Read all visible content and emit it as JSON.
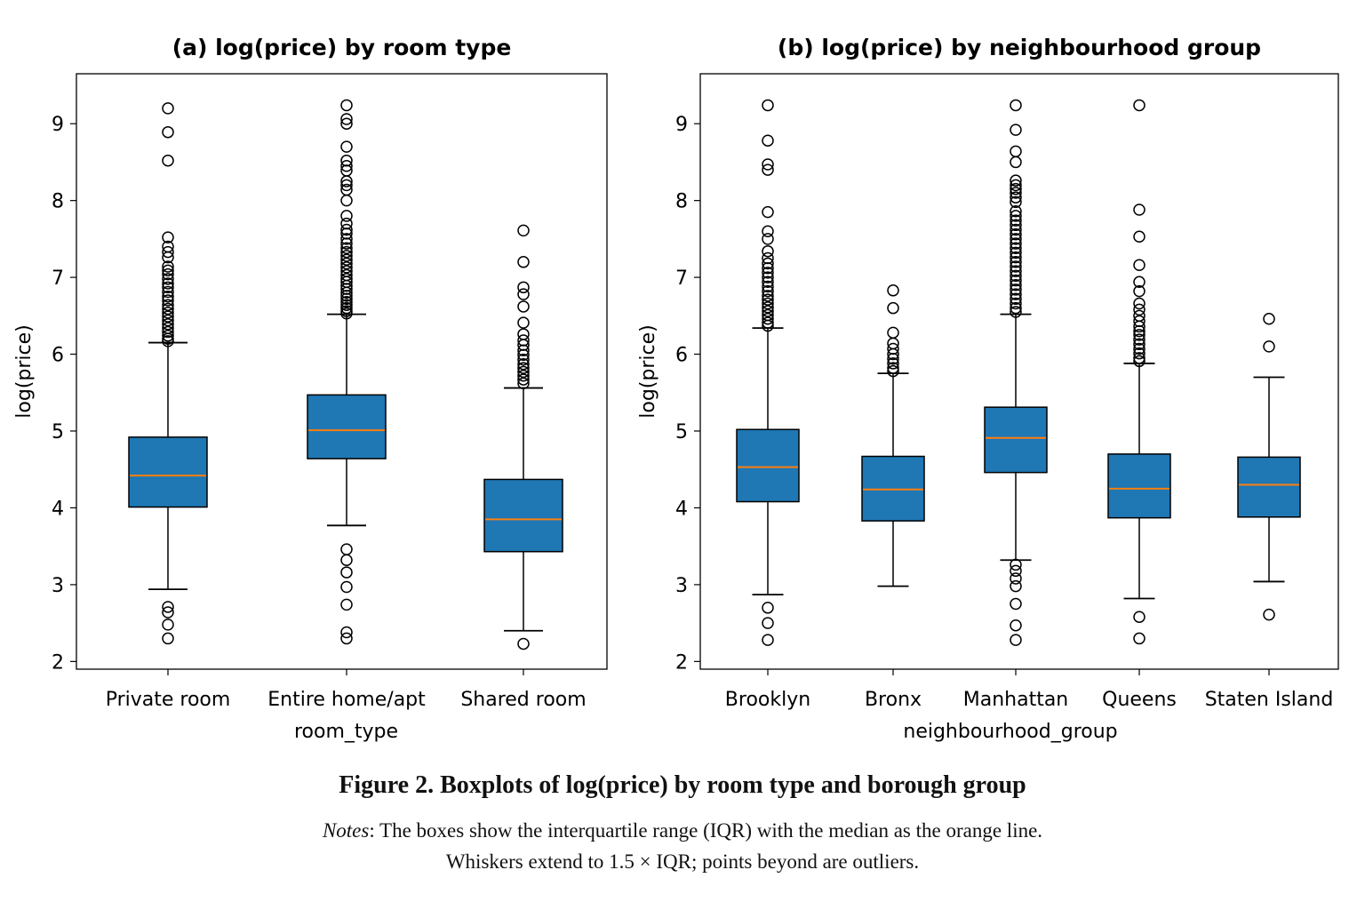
{
  "figure": {
    "caption_title": "Figure 2. Boxplots of log(price) by room type and borough group",
    "notes_label": "Notes",
    "notes_line1": ": The boxes show the interquartile range (IQR) with the median as the orange line.",
    "notes_line2": "Whiskers extend to 1.5 × IQR; points beyond are outliers."
  },
  "colors": {
    "box_fill": "#1f77b4",
    "median": "#ff7f0e",
    "outline": "#000000"
  },
  "chart_data": [
    {
      "type": "boxplot",
      "title": "(a) log(price) by room type",
      "xlabel": "room_type",
      "ylabel": "log(price)",
      "ylim": [
        1.9,
        9.65
      ],
      "yticks": [
        2,
        3,
        4,
        5,
        6,
        7,
        8,
        9
      ],
      "grid": false,
      "categories": [
        "Private room",
        "Entire home/apt",
        "Shared room"
      ],
      "boxes": [
        {
          "q1": 4.01,
          "median": 4.42,
          "q3": 4.92,
          "whisker_low": 2.94,
          "whisker_high": 6.15,
          "outliers": [
            9.2,
            8.89,
            8.52,
            7.52,
            7.4,
            7.33,
            7.26,
            7.14,
            7.09,
            7.04,
            6.98,
            6.92,
            6.87,
            6.81,
            6.75,
            6.7,
            6.64,
            6.59,
            6.54,
            6.49,
            6.44,
            6.39,
            6.34,
            6.29,
            6.24,
            6.2,
            6.17,
            2.71,
            2.64,
            2.48,
            2.3
          ]
        },
        {
          "q1": 4.64,
          "median": 5.01,
          "q3": 5.47,
          "whisker_low": 3.77,
          "whisker_high": 6.52,
          "outliers": [
            9.24,
            9.06,
            9.0,
            8.7,
            8.52,
            8.45,
            8.39,
            8.25,
            8.2,
            8.14,
            8.0,
            7.8,
            7.7,
            7.62,
            7.57,
            7.5,
            7.44,
            7.38,
            7.33,
            7.28,
            7.23,
            7.18,
            7.13,
            7.08,
            7.03,
            6.98,
            6.94,
            6.89,
            6.85,
            6.8,
            6.76,
            6.72,
            6.68,
            6.64,
            6.6,
            6.56,
            6.53,
            3.46,
            3.32,
            3.16,
            2.97,
            2.74,
            2.38,
            2.3
          ]
        },
        {
          "q1": 3.43,
          "median": 3.85,
          "q3": 4.37,
          "whisker_low": 2.4,
          "whisker_high": 5.56,
          "outliers": [
            7.61,
            7.2,
            6.87,
            6.78,
            6.62,
            6.41,
            6.26,
            6.18,
            6.12,
            6.05,
            5.99,
            5.93,
            5.87,
            5.82,
            5.77,
            5.72,
            5.67,
            5.62,
            2.23
          ]
        }
      ]
    },
    {
      "type": "boxplot",
      "title": "(b) log(price) by neighbourhood group",
      "xlabel": "neighbourhood_group",
      "ylabel": "log(price)",
      "ylim": [
        1.9,
        9.65
      ],
      "yticks": [
        2,
        3,
        4,
        5,
        6,
        7,
        8,
        9
      ],
      "grid": false,
      "categories": [
        "Brooklyn",
        "Bronx",
        "Manhattan",
        "Queens",
        "Staten Island"
      ],
      "boxes": [
        {
          "q1": 4.08,
          "median": 4.53,
          "q3": 5.02,
          "whisker_low": 2.87,
          "whisker_high": 6.34,
          "outliers": [
            9.24,
            8.78,
            8.47,
            8.4,
            7.85,
            7.6,
            7.5,
            7.34,
            7.25,
            7.18,
            7.12,
            7.06,
            7.0,
            6.94,
            6.88,
            6.82,
            6.76,
            6.71,
            6.66,
            6.61,
            6.56,
            6.51,
            6.46,
            6.41,
            6.37,
            2.7,
            2.5,
            2.28
          ]
        },
        {
          "q1": 3.83,
          "median": 4.24,
          "q3": 4.67,
          "whisker_low": 2.98,
          "whisker_high": 5.75,
          "outliers": [
            6.83,
            6.6,
            6.28,
            6.14,
            6.07,
            6.0,
            5.94,
            5.88,
            5.82,
            5.78
          ]
        },
        {
          "q1": 4.46,
          "median": 4.91,
          "q3": 5.31,
          "whisker_low": 3.32,
          "whisker_high": 6.52,
          "outliers": [
            9.24,
            8.92,
            8.64,
            8.5,
            8.26,
            8.2,
            8.15,
            8.1,
            8.04,
            7.98,
            7.86,
            7.8,
            7.74,
            7.68,
            7.62,
            7.56,
            7.5,
            7.44,
            7.38,
            7.32,
            7.26,
            7.2,
            7.14,
            7.08,
            7.02,
            6.96,
            6.9,
            6.84,
            6.78,
            6.72,
            6.66,
            6.6,
            6.55,
            3.26,
            3.18,
            3.08,
            2.98,
            2.75,
            2.47,
            2.28
          ]
        },
        {
          "q1": 3.87,
          "median": 4.25,
          "q3": 4.7,
          "whisker_low": 2.82,
          "whisker_high": 5.88,
          "outliers": [
            9.24,
            7.88,
            7.53,
            7.16,
            6.94,
            6.82,
            6.66,
            6.58,
            6.5,
            6.43,
            6.36,
            6.3,
            6.25,
            6.19,
            6.13,
            6.07,
            6.01,
            5.95,
            5.91,
            2.58,
            2.3
          ]
        },
        {
          "q1": 3.88,
          "median": 4.3,
          "q3": 4.66,
          "whisker_low": 3.04,
          "whisker_high": 5.7,
          "outliers": [
            6.46,
            6.1,
            2.61
          ]
        }
      ]
    }
  ]
}
